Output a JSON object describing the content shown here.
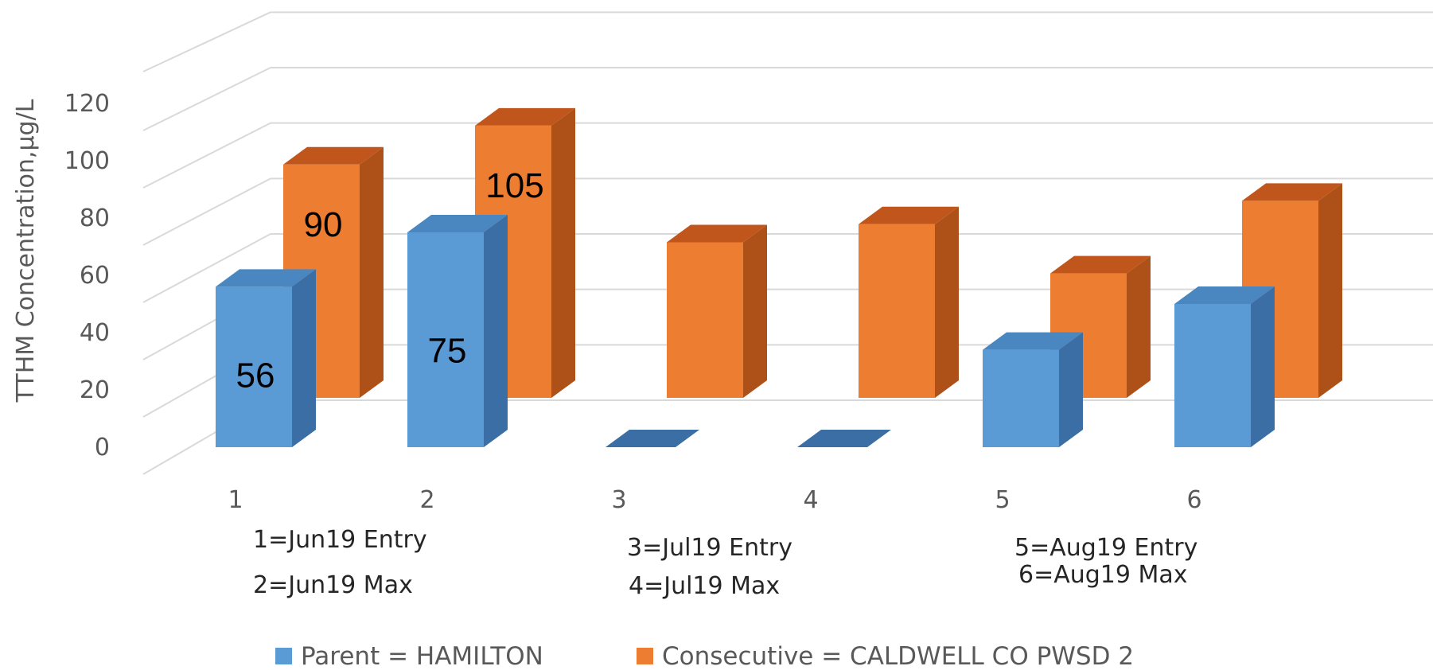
{
  "chart_data": {
    "type": "bar",
    "ylabel": "TTHM Concentration,µg/L",
    "ylim": [
      0,
      120
    ],
    "yticks": [
      "0",
      "20",
      "40",
      "60",
      "80",
      "100",
      "120"
    ],
    "categories": [
      "1",
      "2",
      "3",
      "4",
      "5",
      "6"
    ],
    "series": [
      {
        "name": "Parent = HAMILTON",
        "color": "#5B9BD5",
        "values": [
          56,
          75,
          0,
          0,
          34,
          50
        ],
        "data_labels": [
          "56",
          "75",
          "",
          "",
          "",
          ""
        ]
      },
      {
        "name": "Consecutive = CALDWELL CO PWSD 2",
        "color": "#ED7D31",
        "values": [
          90,
          105,
          60,
          67,
          48,
          76
        ],
        "data_labels": [
          "90",
          "105",
          "",
          "",
          "",
          ""
        ]
      }
    ],
    "annotations": [
      "1=Jun19 Entry",
      "2=Jun19 Max",
      "3=Jul19 Entry",
      "4=Jul19 Max",
      "5=Aug19 Entry",
      "6=Aug19 Max"
    ],
    "grid": true,
    "legend": "bottom"
  }
}
